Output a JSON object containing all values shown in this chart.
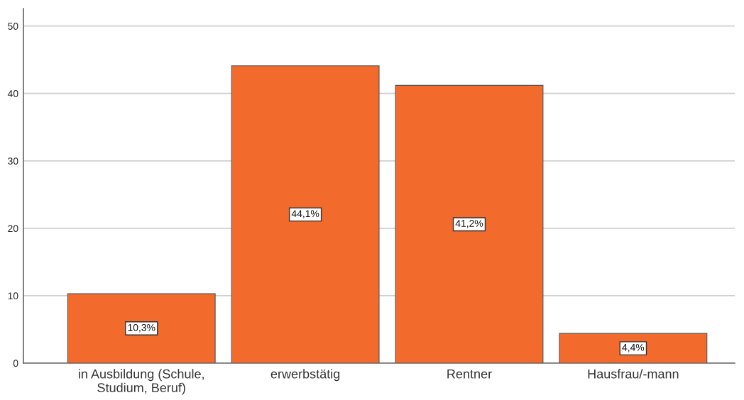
{
  "chart_data": {
    "type": "bar",
    "categories": [
      "in Ausbildung (Schule,\nStudium, Beruf)",
      "erwerbstätig",
      "Rentner",
      "Hausfrau/-mann"
    ],
    "values": [
      10.3,
      44.1,
      41.2,
      4.4
    ],
    "value_labels": [
      "10,3%",
      "44,1%",
      "41,2%",
      "4,4%"
    ],
    "color": "#f26a2c",
    "ylim": [
      0,
      52.6
    ],
    "yticks": [
      0,
      10,
      20,
      30,
      40,
      50
    ],
    "grid": "y",
    "legend": false
  }
}
